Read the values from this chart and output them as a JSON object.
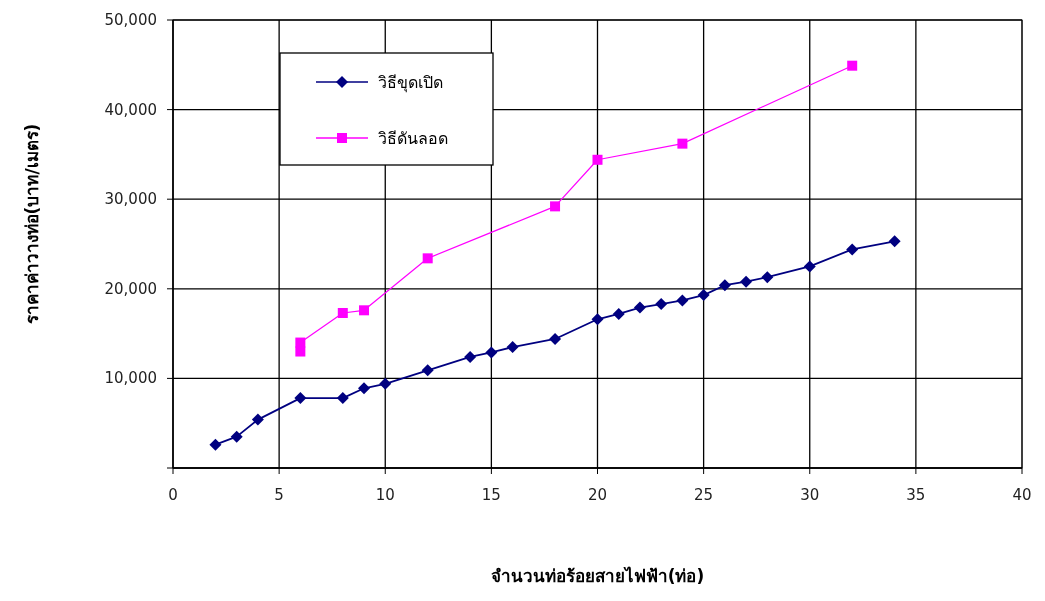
{
  "chart_data": {
    "type": "line",
    "xlabel": "จำนวนท่อร้อยสายไฟฟ้า(ท่อ)",
    "ylabel": "ราคาค่าวางท่อ(บาท/เมตร)",
    "xlim": [
      0,
      40
    ],
    "xticks": [
      0,
      5,
      10,
      15,
      20,
      25,
      30,
      35,
      40
    ],
    "ylim": [
      0,
      50000
    ],
    "yticks": [
      {
        "value": 0,
        "label": null
      },
      {
        "value": 10000,
        "label": "10,000"
      },
      {
        "value": 20000,
        "label": "20,000"
      },
      {
        "value": 30000,
        "label": "30,000"
      },
      {
        "value": 40000,
        "label": "40,000"
      },
      {
        "value": 50000,
        "label": "50,000"
      }
    ],
    "grid": true,
    "legend": "top left",
    "line_style": "solid",
    "series": [
      {
        "name": "วิธีขุดเปิด",
        "color": "#000080",
        "marker": "diamond",
        "x": [
          2,
          3,
          4,
          6,
          8,
          9,
          10,
          12,
          14,
          15,
          16,
          18,
          20,
          21,
          22,
          23,
          24,
          25,
          26,
          27,
          28,
          30,
          32,
          34
        ],
        "values": [
          2600,
          3500,
          5400,
          7800,
          7800,
          8900,
          9400,
          10900,
          12400,
          12900,
          13500,
          14400,
          16600,
          17200,
          17900,
          18300,
          18700,
          19300,
          20400,
          20800,
          21300,
          22500,
          24400,
          25300
        ]
      },
      {
        "name": "วิธีดันลอด",
        "color": "#ff00ff",
        "marker": "square",
        "x": [
          6,
          6,
          8,
          9,
          12,
          18,
          20,
          24,
          32
        ],
        "values": [
          13000,
          14000,
          17300,
          17600,
          23400,
          29200,
          34400,
          36200,
          44900
        ]
      }
    ]
  }
}
